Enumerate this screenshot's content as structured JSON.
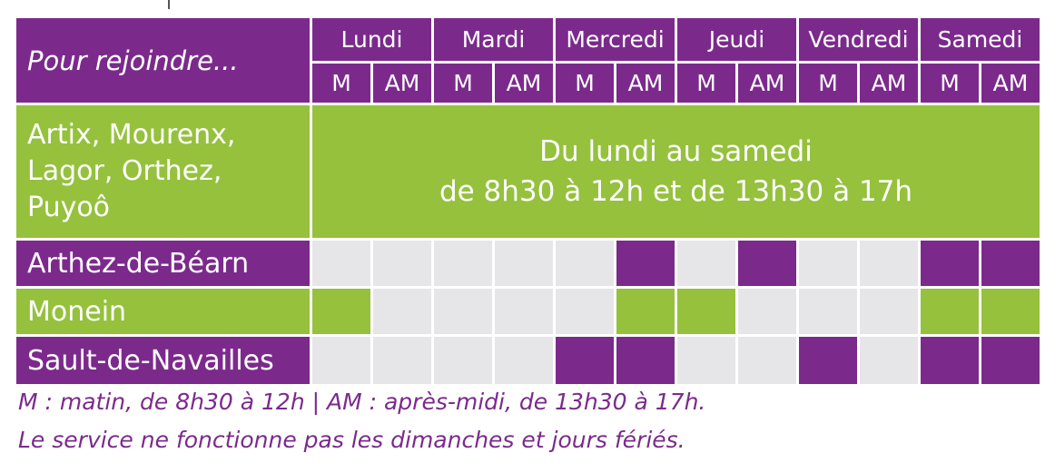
{
  "header": {
    "title": "Pour rejoindre...",
    "days": [
      "Lundi",
      "Mardi",
      "Mercredi",
      "Jeudi",
      "Vendredi",
      "Samedi"
    ],
    "half_labels": [
      "M",
      "AM",
      "M",
      "AM",
      "M",
      "AM",
      "M",
      "AM",
      "M",
      "AM",
      "M",
      "AM"
    ]
  },
  "group_row": {
    "towns": "Artix, Mourenx,\nLagor, Orthez,\nPuyoô",
    "banner_line1": "Du lundi au samedi",
    "banner_line2": "de 8h30 à 12h et de 13h30 à 17h"
  },
  "rows": [
    {
      "town": "Arthez-de-Béarn",
      "active": [
        false,
        false,
        false,
        false,
        false,
        true,
        false,
        true,
        false,
        false,
        true,
        true
      ],
      "color": "#7b2a8c"
    },
    {
      "town": "Monein",
      "active": [
        true,
        false,
        false,
        false,
        false,
        true,
        true,
        false,
        false,
        false,
        true,
        true
      ],
      "color": "#95c13d"
    },
    {
      "town": "Sault-de-Navailles",
      "active": [
        false,
        false,
        false,
        false,
        true,
        true,
        false,
        false,
        true,
        false,
        true,
        true
      ],
      "color": "#7b2a8c"
    }
  ],
  "colors": {
    "purple": "#7b2a8c",
    "green": "#95c13d",
    "grey": "#e6e6e8"
  },
  "legend": {
    "line1": "M : matin, de 8h30 à 12h | AM : après-midi, de 13h30 à 17h.",
    "line2": "Le service ne fonctionne pas les dimanches et jours fériés."
  }
}
